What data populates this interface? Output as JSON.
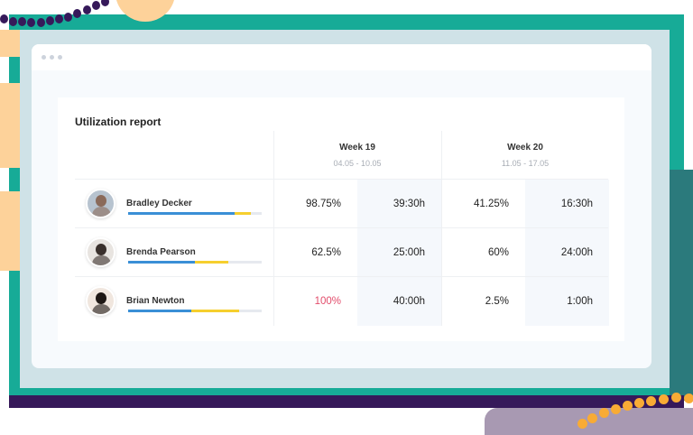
{
  "colors": {
    "frame": "#17ab97",
    "accent_blue": "#3a8fd6",
    "accent_yellow": "#f6cf2e",
    "alert": "#e24c6b"
  },
  "report": {
    "title": "Utilization report",
    "weeks": [
      {
        "label": "Week 19",
        "dates": "04.05 - 10.05"
      },
      {
        "label": "Week 20",
        "dates": "11.05 - 17.05"
      }
    ],
    "rows": [
      {
        "name": "Bradley Decker",
        "bar_blue_pct": 80,
        "bar_yellow_pct": 12,
        "w19_pct": "98.75%",
        "w19_hours": "39:30h",
        "w20_pct": "41.25%",
        "w20_hours": "16:30h",
        "w19_alert": false
      },
      {
        "name": "Brenda Pearson",
        "bar_blue_pct": 50,
        "bar_yellow_pct": 25,
        "w19_pct": "62.5%",
        "w19_hours": "25:00h",
        "w20_pct": "60%",
        "w20_hours": "24:00h",
        "w19_alert": false
      },
      {
        "name": "Brian Newton",
        "bar_blue_pct": 47,
        "bar_yellow_pct": 36,
        "w19_pct": "100%",
        "w19_hours": "40:00h",
        "w20_pct": "2.5%",
        "w20_hours": "1:00h",
        "w19_alert": true
      }
    ]
  }
}
